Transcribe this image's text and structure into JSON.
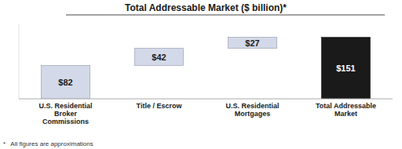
{
  "chart_data": {
    "type": "bar",
    "title": "Total Addressable Market ($ billion)*",
    "categories": [
      "U.S. Residential\nBroker\nCommissions",
      "Title / Escrow",
      "U.S. Residential\nMortgages",
      "Total Addressable\nMarket"
    ],
    "values": [
      82,
      42,
      27,
      151
    ],
    "bottoms": [
      0,
      82,
      124,
      0
    ],
    "value_labels": [
      "$82",
      "$42",
      "$27",
      "$151"
    ],
    "data_labels": true,
    "colors": [
      "#d3d9e8",
      "#d3d9e8",
      "#d3d9e8",
      "#1a1a1a"
    ],
    "ylim": [
      0,
      185
    ],
    "tick_labels": "x",
    "grid": false,
    "annotations": [
      "*   All figures are approximations"
    ]
  }
}
